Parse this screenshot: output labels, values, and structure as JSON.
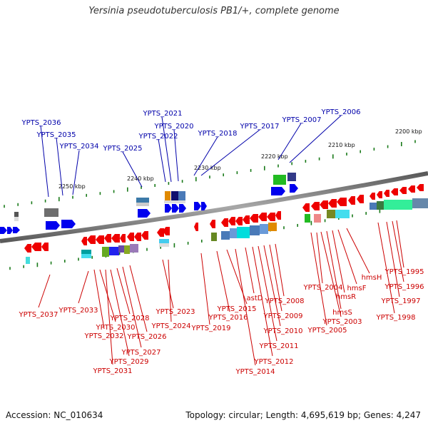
{
  "title": "Yersinia pseudotuberculosis PB1/+, complete genome",
  "footer": {
    "accession": "Accession: NC_010634",
    "stats": "Topology: circular; Length: 4,695,619 bp; Genes: 4,247"
  },
  "colors": {
    "forward": "#0000ee",
    "reverse": "#ee0000",
    "label_forward": "#0000aa",
    "label_reverse": "#cc0000",
    "backbone": "#808080",
    "tick_green": "#1a7a1a"
  },
  "ticks": [
    {
      "label": "2250 kbp"
    },
    {
      "label": "2240 kbp"
    },
    {
      "label": "2230 kbp"
    },
    {
      "label": "2220 kbp"
    },
    {
      "label": "2210 kbp"
    },
    {
      "label": "2200 kbp"
    }
  ],
  "forward_labels": [
    "YPTS_2036",
    "YPTS_2035",
    "YPTS_2034",
    "YPTS_2025",
    "YPTS_2021",
    "YPTS_2022",
    "YPTS_2020",
    "YPTS_2018",
    "YPTS_2017",
    "YPTS_2007",
    "YPTS_2006"
  ],
  "reverse_labels": [
    "YPTS_2037",
    "YPTS_2033",
    "YPTS_2032",
    "YPTS_2030",
    "YPTS_2031",
    "YPTS_2029",
    "YPTS_2028",
    "YPTS_2027",
    "YPTS_2026",
    "YPTS_2023",
    "YPTS_2024",
    "YPTS_2019",
    "YPTS_2016",
    "YPTS_2015",
    "YPTS_2014",
    "astD",
    "YPTS_2012",
    "YPTS_2011",
    "YPTS_2010",
    "YPTS_2009",
    "YPTS_2008",
    "YPTS_2005",
    "YPTS_2004",
    "YPTS_2003",
    "hmsS",
    "hmsR",
    "hmsF",
    "hmsH",
    "YPTS_1998",
    "YPTS_1997",
    "YPTS_1996",
    "YPTS_1995"
  ]
}
